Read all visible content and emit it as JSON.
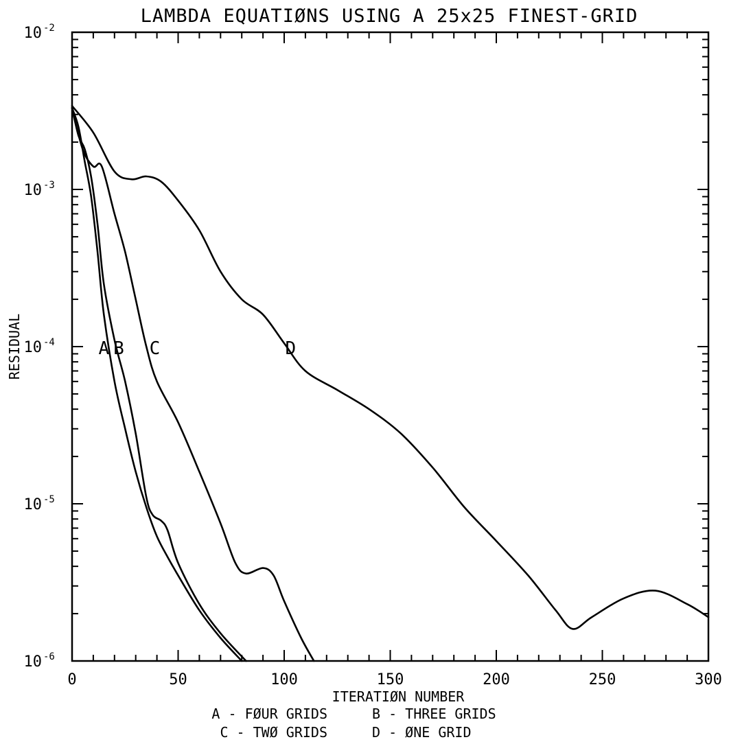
{
  "chart_data": {
    "type": "line",
    "title": "LAMBDA EQUATIØNS USING A 25x25 FINEST-GRID",
    "xlabel": "ITERATIØN NUMBER",
    "ylabel": "RESIDUAL",
    "xlim": [
      0,
      300
    ],
    "ylim": [
      1e-06,
      0.01
    ],
    "yscale": "log",
    "grid": false,
    "x_ticks": [
      0,
      50,
      100,
      150,
      200,
      250,
      300
    ],
    "y_ticks": [
      {
        "value": 1e-06,
        "base": "10",
        "exp": "-6"
      },
      {
        "value": 1e-05,
        "base": "10",
        "exp": "-5"
      },
      {
        "value": 0.0001,
        "base": "10",
        "exp": "-4"
      },
      {
        "value": 0.001,
        "base": "10",
        "exp": "-3"
      },
      {
        "value": 0.01,
        "base": "10",
        "exp": "-2"
      }
    ],
    "legend": [
      [
        "A - FØUR GRIDS",
        "B - THREE GRIDS"
      ],
      [
        "C - TWØ GRIDS",
        "D - ØNE GRID"
      ]
    ],
    "series": [
      {
        "name": "A",
        "label_at": [
          15,
          0.0001
        ],
        "points": [
          [
            0,
            0.0033
          ],
          [
            3,
            0.0025
          ],
          [
            6,
            0.0015
          ],
          [
            9,
            0.0009
          ],
          [
            12,
            0.0004
          ],
          [
            15,
            0.00016
          ],
          [
            20,
            6e-05
          ],
          [
            25,
            3e-05
          ],
          [
            30,
            1.6e-05
          ],
          [
            35,
            9.5e-06
          ],
          [
            40,
            6.2e-06
          ],
          [
            45,
            4.6e-06
          ],
          [
            50,
            3.5e-06
          ],
          [
            60,
            2.1e-06
          ],
          [
            70,
            1.4e-06
          ],
          [
            80,
            1e-06
          ]
        ]
      },
      {
        "name": "B",
        "label_at": [
          22,
          0.0001
        ],
        "points": [
          [
            0,
            0.0033
          ],
          [
            3,
            0.0022
          ],
          [
            6,
            0.0018
          ],
          [
            9,
            0.0012
          ],
          [
            12,
            0.0006
          ],
          [
            15,
            0.00025
          ],
          [
            20,
            0.00011
          ],
          [
            25,
            6e-05
          ],
          [
            30,
            2.8e-05
          ],
          [
            35,
            1.1e-05
          ],
          [
            38,
            8.5e-06
          ],
          [
            42,
            7.8e-06
          ],
          [
            45,
            6.8e-06
          ],
          [
            50,
            4.2e-06
          ],
          [
            60,
            2.3e-06
          ],
          [
            70,
            1.5e-06
          ],
          [
            82,
            1e-06
          ]
        ]
      },
      {
        "name": "C",
        "label_at": [
          39,
          0.0001
        ],
        "points": [
          [
            0,
            0.0033
          ],
          [
            5,
            0.0018
          ],
          [
            10,
            0.0014
          ],
          [
            14,
            0.0014
          ],
          [
            20,
            0.0007
          ],
          [
            25,
            0.0004
          ],
          [
            30,
            0.0002
          ],
          [
            35,
            0.0001
          ],
          [
            40,
            6e-05
          ],
          [
            50,
            3.3e-05
          ],
          [
            60,
            1.6e-05
          ],
          [
            70,
            7.5e-06
          ],
          [
            77,
            4.2e-06
          ],
          [
            82,
            3.6e-06
          ],
          [
            90,
            3.9e-06
          ],
          [
            95,
            3.5e-06
          ],
          [
            100,
            2.4e-06
          ],
          [
            108,
            1.4e-06
          ],
          [
            114,
            1e-06
          ]
        ]
      },
      {
        "name": "D",
        "label_at": [
          103,
          0.0001
        ],
        "points": [
          [
            0,
            0.0034
          ],
          [
            10,
            0.0023
          ],
          [
            20,
            0.0013
          ],
          [
            28,
            0.00116
          ],
          [
            35,
            0.00121
          ],
          [
            42,
            0.00112
          ],
          [
            50,
            0.00085
          ],
          [
            60,
            0.00055
          ],
          [
            70,
            0.0003
          ],
          [
            80,
            0.0002
          ],
          [
            90,
            0.00016
          ],
          [
            100,
            0.000105
          ],
          [
            110,
            7e-05
          ],
          [
            125,
            5.3e-05
          ],
          [
            140,
            4e-05
          ],
          [
            155,
            2.8e-05
          ],
          [
            170,
            1.7e-05
          ],
          [
            185,
            9.5e-06
          ],
          [
            200,
            5.8e-06
          ],
          [
            215,
            3.5e-06
          ],
          [
            228,
            2.1e-06
          ],
          [
            236,
            1.6e-06
          ],
          [
            245,
            1.9e-06
          ],
          [
            260,
            2.5e-06
          ],
          [
            275,
            2.8e-06
          ],
          [
            290,
            2.3e-06
          ],
          [
            300,
            1.9e-06
          ]
        ]
      }
    ]
  }
}
